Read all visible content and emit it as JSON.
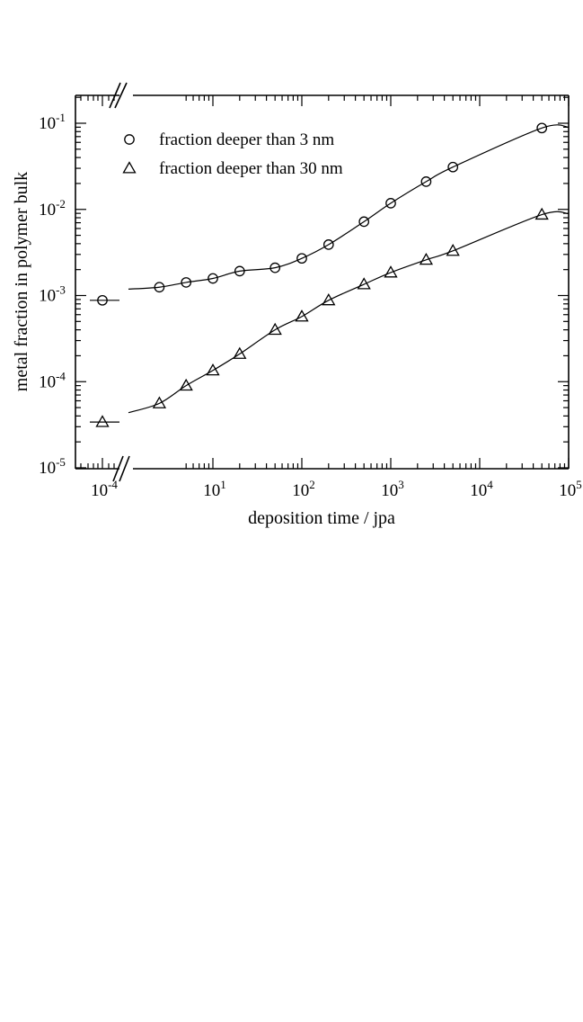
{
  "chart_data": {
    "type": "scatter",
    "title": "",
    "xlabel": "deposition time / jpa",
    "ylabel": "metal fraction in polymer bulk",
    "x_scale": "log (broken axis)",
    "y_scale": "log",
    "ylim": [
      1e-05,
      0.2
    ],
    "xlim": [
      0.0001,
      100000.0
    ],
    "x_ticks": [
      {
        "base": "10",
        "exp": "-4",
        "value": 0.0001
      },
      {
        "base": "10",
        "exp": "1",
        "value": 10
      },
      {
        "base": "10",
        "exp": "2",
        "value": 100
      },
      {
        "base": "10",
        "exp": "3",
        "value": 1000
      },
      {
        "base": "10",
        "exp": "4",
        "value": 10000
      },
      {
        "base": "10",
        "exp": "5",
        "value": 100000
      }
    ],
    "y_ticks": [
      {
        "base": "10",
        "exp": "-1",
        "value": 0.1
      },
      {
        "base": "10",
        "exp": "-2",
        "value": 0.01
      },
      {
        "base": "10",
        "exp": "-3",
        "value": 0.001
      },
      {
        "base": "10",
        "exp": "-4",
        "value": 0.0001
      },
      {
        "base": "10",
        "exp": "-5",
        "value": 1e-05
      }
    ],
    "legend_position": "top-left",
    "grid": false,
    "series": [
      {
        "name": "fraction deeper than 3 nm",
        "marker": "circle",
        "break_point": {
          "x": 0.0001,
          "y": 0.00088
        },
        "x": [
          2.5,
          5,
          10,
          20,
          50,
          100,
          200,
          500,
          1000,
          2500,
          5000,
          50000
        ],
        "y": [
          0.00125,
          0.00142,
          0.00158,
          0.00192,
          0.0021,
          0.0027,
          0.0039,
          0.0072,
          0.0118,
          0.021,
          0.031,
          0.088
        ]
      },
      {
        "name": "fraction deeper than 30 nm",
        "marker": "triangle",
        "break_point": {
          "x": 0.0001,
          "y": 3.4e-05
        },
        "x": [
          2.5,
          5,
          10,
          20,
          50,
          100,
          200,
          500,
          1000,
          2500,
          5000,
          50000
        ],
        "y": [
          5.6e-05,
          9e-05,
          0.000135,
          0.00021,
          0.0004,
          0.00057,
          0.00088,
          0.00135,
          0.00185,
          0.0026,
          0.0033,
          0.0087
        ]
      }
    ]
  }
}
